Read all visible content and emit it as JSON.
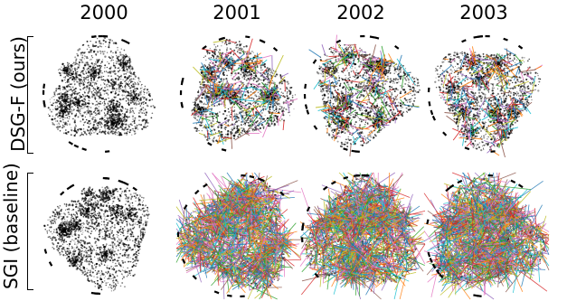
{
  "figure": {
    "columns": [
      "2000",
      "2001",
      "2002",
      "2003"
    ],
    "rows": [
      "DSG-F (ours)",
      "SGI (baseline)"
    ]
  },
  "panels": [
    {
      "row": 0,
      "col": 0,
      "edges": "none"
    },
    {
      "row": 0,
      "col": 1,
      "edges": "sparse"
    },
    {
      "row": 0,
      "col": 2,
      "edges": "sparse"
    },
    {
      "row": 0,
      "col": 3,
      "edges": "sparse"
    },
    {
      "row": 1,
      "col": 0,
      "edges": "none"
    },
    {
      "row": 1,
      "col": 1,
      "edges": "dense"
    },
    {
      "row": 1,
      "col": 2,
      "edges": "dense"
    },
    {
      "row": 1,
      "col": 3,
      "edges": "dense"
    }
  ],
  "edge_colors": [
    "#1f77b4",
    "#ff7f0e",
    "#2ca02c",
    "#d62728",
    "#9467bd",
    "#8c564b",
    "#e377c2",
    "#17becf",
    "#bcbd22"
  ]
}
